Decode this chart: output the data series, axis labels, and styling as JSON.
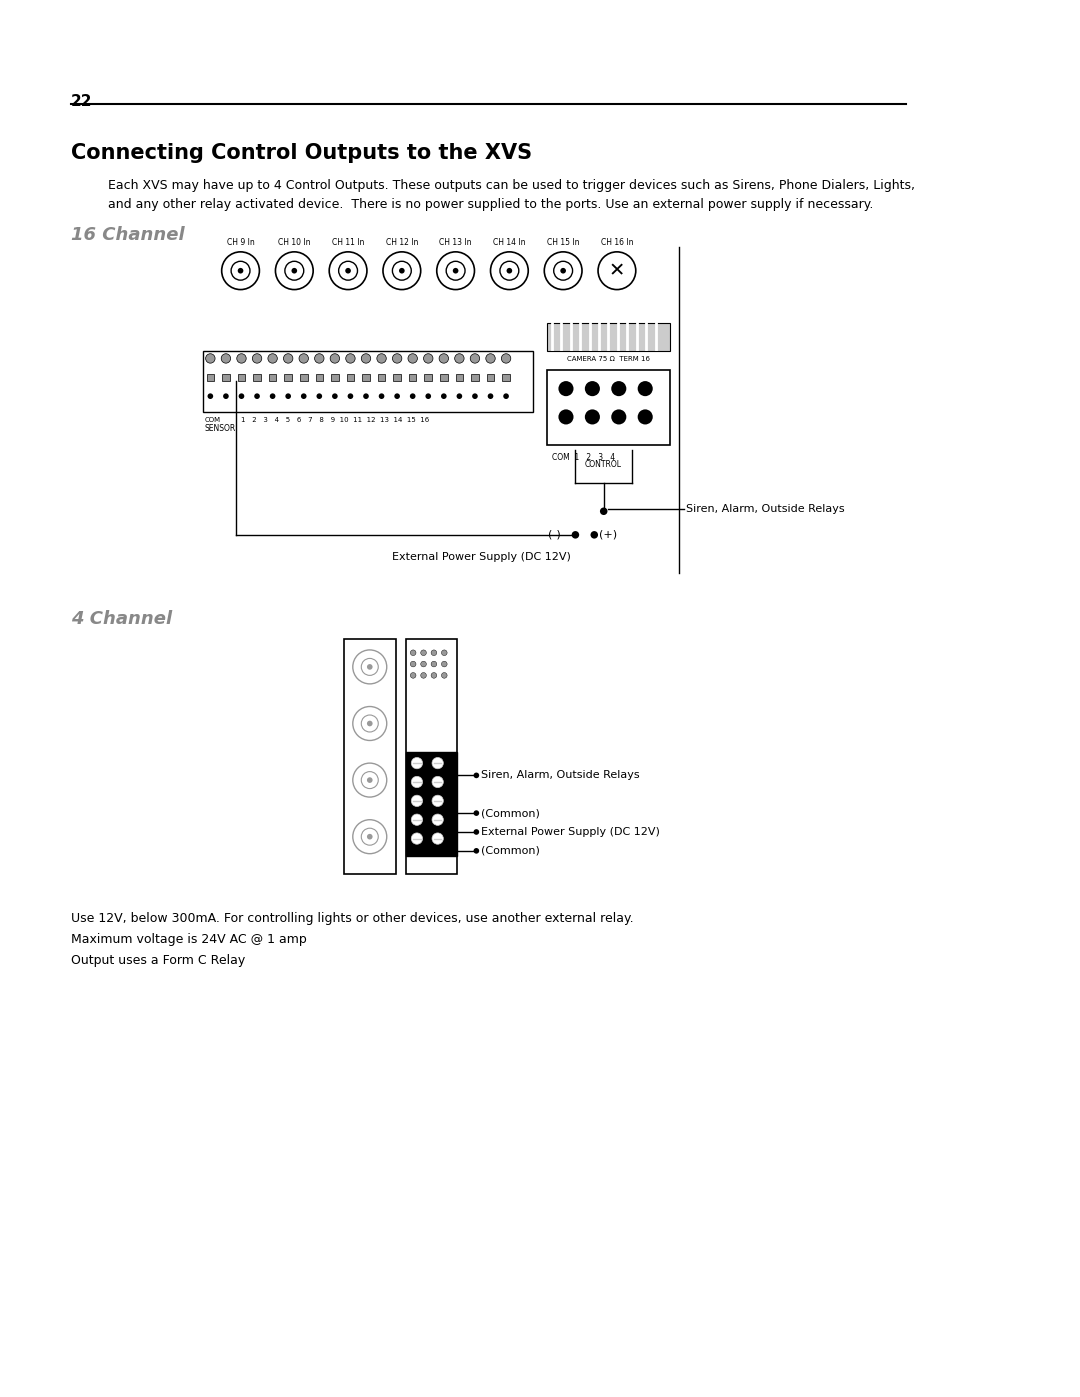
{
  "page_number": "22",
  "title": "Connecting Control Outputs to the XVS",
  "body_text_1": "Each XVS may have up to 4 Control Outputs. These outputs can be used to trigger devices such as Sirens, Phone Dialers, Lights,",
  "body_text_2": "and any other relay activated device.  There is no power supplied to the ports. Use an external power supply if necessary.",
  "section1_title": "16 Channel",
  "section2_title": "4 Channel",
  "label_siren1": "Siren, Alarm, Outside Relays",
  "label_external1": "External Power Supply (DC 12V)",
  "label_minus": "(-)",
  "label_plus": "(+)",
  "label_com": "COM",
  "label_sensor": "SENSOR",
  "label_control": "CONTROL",
  "label_com_ctrl": "COM  1   2   3   4",
  "label_camera": "CAMERA 75 Ω  TERM 16",
  "label_ch9": "CH 9 In",
  "label_ch10": "CH 10 In",
  "label_ch11": "CH 11 In",
  "label_ch12": "CH 12 In",
  "label_ch13": "CH 13 In",
  "label_ch14": "CH 14 In",
  "label_ch15": "CH 15 In",
  "label_ch16": "CH 16 In",
  "label_siren2": "Siren, Alarm, Outside Relays",
  "label_common1": "(Common)",
  "label_external2": "External Power Supply (DC 12V)",
  "label_common2": "(Common)",
  "footer_text_1": "Use 12V, below 300mA. For controlling lights or other devices, use another external relay.",
  "footer_text_2": "Maximum voltage is 24V AC @ 1 amp",
  "footer_text_3": "Output uses a Form C Relay",
  "bg_color": "#ffffff",
  "text_color": "#000000",
  "gray_color": "#888888",
  "light_gray": "#cccccc",
  "mid_gray": "#999999"
}
